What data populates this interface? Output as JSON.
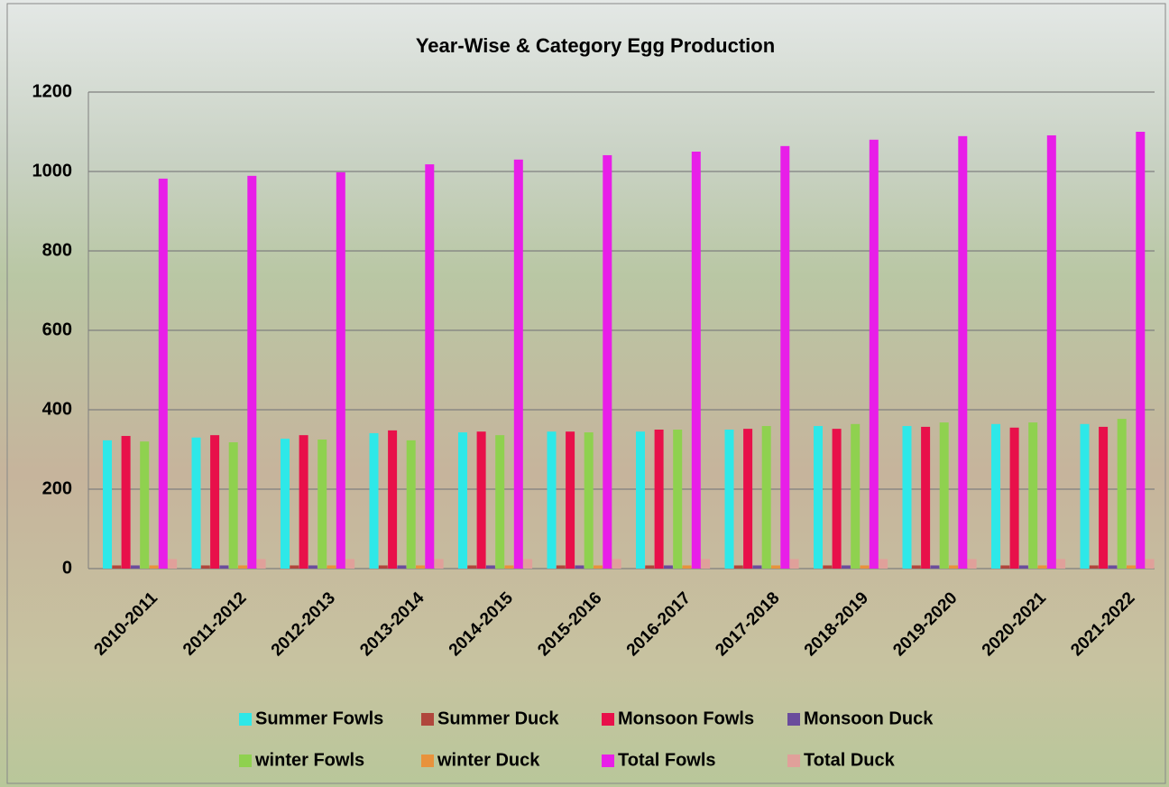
{
  "chart_data": {
    "type": "bar",
    "title": "Year-Wise & Category Egg Production",
    "categories": [
      "2010-2011",
      "2011-2012",
      "2012-2013",
      "2013-2014",
      "2014-2015",
      "2015-2016",
      "2016-2017",
      "2017-2018",
      "2018-2019",
      "2019-2020",
      "2020-2021",
      "2021-2022"
    ],
    "series": [
      {
        "name": "Summer Fowls",
        "color": "#2ee8e8",
        "values": [
          323,
          330,
          327,
          341,
          343,
          345,
          345,
          350,
          359,
          359,
          364,
          364
        ]
      },
      {
        "name": "Summer Duck",
        "color": "#b0463c",
        "values": [
          8,
          8,
          8,
          8,
          8,
          8,
          8,
          8,
          8,
          8,
          8,
          8
        ]
      },
      {
        "name": "Monsoon Fowls",
        "color": "#e8104a",
        "values": [
          334,
          336,
          336,
          348,
          345,
          345,
          350,
          352,
          352,
          357,
          355,
          357
        ]
      },
      {
        "name": "Monsoon Duck",
        "color": "#6a4c9c",
        "values": [
          8,
          8,
          8,
          8,
          8,
          8,
          8,
          8,
          8,
          8,
          8,
          8
        ]
      },
      {
        "name": "winter Fowls",
        "color": "#8fd14f",
        "values": [
          320,
          318,
          325,
          323,
          336,
          343,
          350,
          359,
          364,
          368,
          368,
          377
        ]
      },
      {
        "name": "winter Duck",
        "color": "#e8923c",
        "values": [
          8,
          8,
          8,
          8,
          8,
          8,
          8,
          8,
          8,
          8,
          8,
          8
        ]
      },
      {
        "name": "Total Fowls",
        "color": "#e81ee8",
        "values": [
          982,
          989,
          998,
          1018,
          1030,
          1041,
          1050,
          1064,
          1080,
          1089,
          1091,
          1100
        ]
      },
      {
        "name": "Total Duck",
        "color": "#e0a09a",
        "values": [
          24,
          24,
          24,
          24,
          24,
          24,
          24,
          24,
          24,
          24,
          24,
          24
        ]
      }
    ],
    "ylim": [
      0,
      1200
    ],
    "yticks": [
      0,
      200,
      400,
      600,
      800,
      1000,
      1200
    ],
    "grid": true
  }
}
